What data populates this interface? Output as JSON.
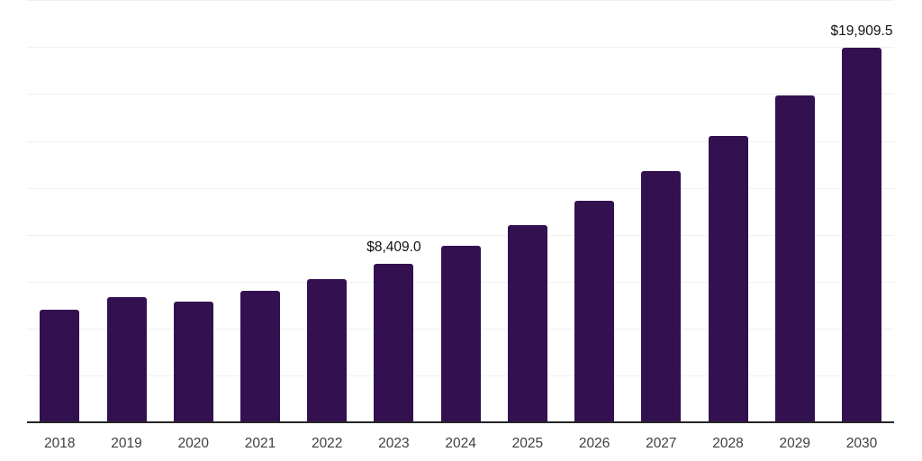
{
  "chart_data": {
    "type": "bar",
    "title": "",
    "xlabel": "",
    "ylabel": "",
    "categories": [
      "2018",
      "2019",
      "2020",
      "2021",
      "2022",
      "2023",
      "2024",
      "2025",
      "2026",
      "2027",
      "2028",
      "2029",
      "2030"
    ],
    "values": [
      5950,
      6640,
      6370,
      6960,
      7600,
      8409.0,
      9360,
      10460,
      11770,
      13360,
      15230,
      17390,
      19909.5
    ],
    "data_labels": [
      {
        "category": "2023",
        "text": "$8,409.0"
      },
      {
        "category": "2030",
        "text": "$19,909.5"
      }
    ],
    "ylim": [
      0,
      22560
    ],
    "gridline_step": 2500,
    "grid": "horizontal-only",
    "legend": "none",
    "y_axis_tick_labels": "none",
    "colors": {
      "bar": "#331150",
      "gridline": "#f1f1f1",
      "axis_line": "#262626",
      "value_label": "#111111",
      "tick_label": "#3f3f3f",
      "background": "#ffffff"
    }
  }
}
